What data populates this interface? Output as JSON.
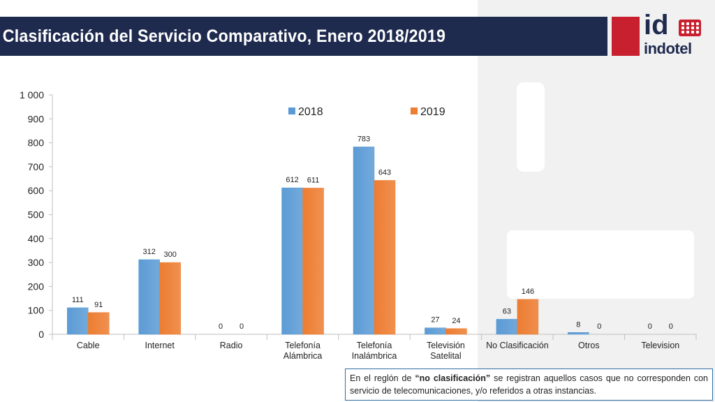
{
  "header": {
    "title": "Clasificación del Servicio Comparativo, Enero 2018/2019"
  },
  "logo": {
    "top_text": "id",
    "bottom_text": "indotel"
  },
  "colors": {
    "series_2018": "#5b9bd5",
    "series_2019": "#ed7d31",
    "title_bar": "#1e2a4e",
    "logo_red": "#c8202f"
  },
  "chart_data": {
    "type": "bar",
    "categories": [
      "Cable",
      "Internet",
      "Radio",
      "Telefonía Alámbrica",
      "Telefonía Inalámbrica",
      "Televisión Satelital",
      "No Clasificación",
      "Otros",
      "Television"
    ],
    "category_lines": [
      [
        "Cable"
      ],
      [
        "Internet"
      ],
      [
        "Radio"
      ],
      [
        "Telefonía",
        "Alámbrica"
      ],
      [
        "Telefonía",
        "Inalámbrica"
      ],
      [
        "Televisión",
        "Satelital"
      ],
      [
        "No Clasificación"
      ],
      [
        "Otros"
      ],
      [
        "Television"
      ]
    ],
    "series": [
      {
        "name": "2018",
        "values": [
          111,
          312,
          0,
          612,
          783,
          27,
          63,
          8,
          0
        ]
      },
      {
        "name": "2019",
        "values": [
          91,
          300,
          0,
          611,
          643,
          24,
          146,
          0,
          0
        ]
      }
    ],
    "ylim": [
      0,
      1000
    ],
    "yticks": [
      0,
      100,
      200,
      300,
      400,
      500,
      600,
      700,
      800,
      900,
      1000
    ],
    "ytick_labels": [
      "0",
      "100",
      "200",
      "300",
      "400",
      "500",
      "600",
      "700",
      "800",
      "900",
      "1 000"
    ],
    "legend_position": "top",
    "grid": false
  },
  "note": {
    "prefix": "En el reglón de ",
    "bold": "“no clasificación”",
    "suffix": " se registran aquellos casos que no corresponden con servicio de telecomunicaciones, y/o referidos a otras instancias."
  }
}
